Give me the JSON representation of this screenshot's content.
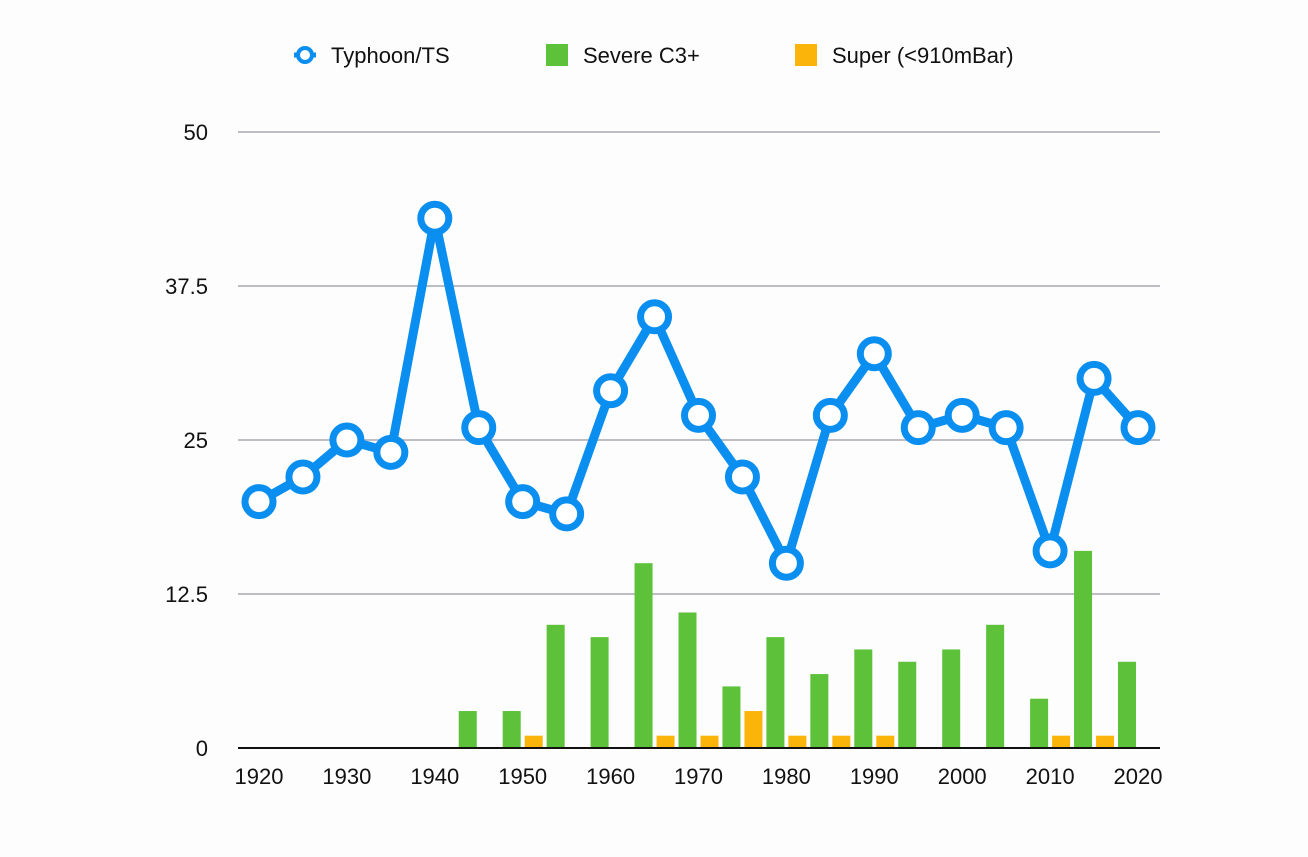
{
  "chart_data": {
    "type": "bar+line",
    "title": "",
    "xlabel": "",
    "ylabel": "",
    "ylim": [
      0,
      50
    ],
    "yticks": [
      "0",
      "12.5",
      "25",
      "37.5",
      "50"
    ],
    "x_tick_labels": [
      "1920",
      "1930",
      "1940",
      "1950",
      "1960",
      "1970",
      "1980",
      "1990",
      "2000",
      "2010",
      "2020"
    ],
    "x": [
      1920,
      1925,
      1930,
      1935,
      1940,
      1945,
      1950,
      1955,
      1960,
      1965,
      1970,
      1975,
      1980,
      1985,
      1990,
      1995,
      2000,
      2005,
      2010,
      2015,
      2020
    ],
    "grid": true,
    "legend_position": "top",
    "series": [
      {
        "name": "Typhoon/TS",
        "type": "line",
        "color": "#0a8ff0",
        "values": [
          20,
          22,
          25,
          24,
          43,
          26,
          20,
          19,
          29,
          35,
          27,
          22,
          15,
          27,
          32,
          26,
          27,
          26,
          16,
          30,
          26
        ]
      },
      {
        "name": "Severe C3+",
        "type": "bar",
        "color": "#5dc13a",
        "values": [
          0,
          0,
          0,
          0,
          0,
          3,
          3,
          10,
          9,
          15,
          11,
          5,
          9,
          6,
          8,
          7,
          8,
          10,
          4,
          16,
          7
        ]
      },
      {
        "name": "Super (<910mBar)",
        "type": "bar",
        "color": "#fbb40a",
        "values": [
          0,
          0,
          0,
          0,
          0,
          0,
          1,
          0,
          0,
          1,
          1,
          3,
          1,
          1,
          1,
          0,
          0,
          0,
          1,
          1,
          0
        ]
      }
    ]
  }
}
